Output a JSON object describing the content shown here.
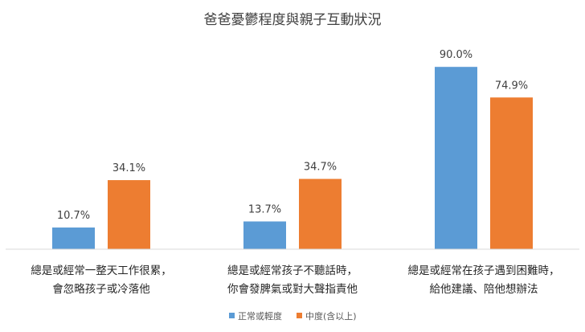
{
  "chart_data": {
    "type": "bar",
    "title": "爸爸憂鬱程度與親子互動狀況",
    "categories": [
      [
        "總是或經常一整天工作很累，",
        "會忽略孩子或冷落他"
      ],
      [
        "總是或經常孩子不聽話時，",
        "你會發脾氣或對大聲指責他"
      ],
      [
        "總是或經常在孩子遇到困難時，",
        "給他建議、陪他想辦法"
      ]
    ],
    "series": [
      {
        "name": "正常或輕度",
        "color": "#5B9BD5",
        "values": [
          10.7,
          13.7,
          90.0
        ]
      },
      {
        "name": "中度(含以上)",
        "color": "#ED7D31",
        "values": [
          34.1,
          34.7,
          74.9
        ]
      }
    ],
    "value_labels": [
      [
        "10.7%",
        "13.7%",
        "90.0%"
      ],
      [
        "34.1%",
        "34.7%",
        "74.9%"
      ]
    ],
    "ylim": [
      0,
      100
    ],
    "grid": false,
    "legend": "bottom",
    "axis_color": "#D9D9D9"
  }
}
